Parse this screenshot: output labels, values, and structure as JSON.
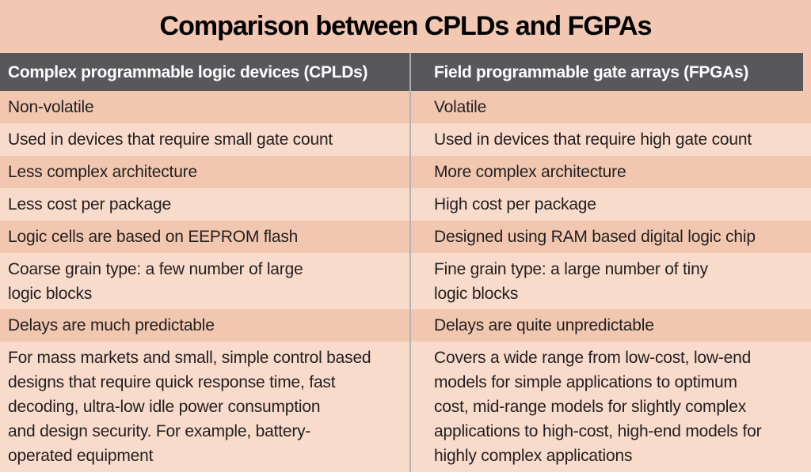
{
  "chart_data": {
    "type": "table",
    "title": "Comparison between CPLDs and FGPAs",
    "columns": [
      "Complex programmable logic devices (CPLDs)",
      "Field programmable gate arrays (FPGAs)"
    ],
    "rows": [
      [
        "Non-volatile",
        "Volatile"
      ],
      [
        "Used in devices that require small gate count",
        "Used in devices that require high gate count"
      ],
      [
        "Less complex architecture",
        "More complex architecture"
      ],
      [
        "Less cost per package",
        "High cost per package"
      ],
      [
        "Logic cells are based on EEPROM flash",
        "Designed using RAM based digital logic chip"
      ],
      [
        "Coarse grain type: a few number of large\nlogic blocks",
        "Fine grain type: a large number of tiny\nlogic blocks"
      ],
      [
        "Delays are much predictable",
        "Delays are quite unpredictable"
      ],
      [
        "For mass markets and small, simple control based\ndesigns that require quick response time, fast\ndecoding, ultra-low idle power consumption\nand design security. For example, battery-\noperated equipment",
        "Covers a wide range from low-cost, low-end\nmodels for simple applications to optimum\ncost, mid-range models for slightly complex\napplications to high-cost, high-end models for\nhighly complex applications"
      ]
    ],
    "layout": {
      "legend": "none",
      "grid": "off",
      "row_shading": "alternating odd=dark-peach even=light-peach"
    }
  },
  "colors": {
    "page_background": "#f2c8b2",
    "row_dark": "#f2c7b0",
    "row_light": "#f8dbca",
    "header_background": "#58585a",
    "header_text": "#ffffff",
    "column_divider": "#b4b2b5",
    "body_text": "#231f20",
    "title_text": "#000000",
    "bottom_strip": "#ffffff"
  }
}
